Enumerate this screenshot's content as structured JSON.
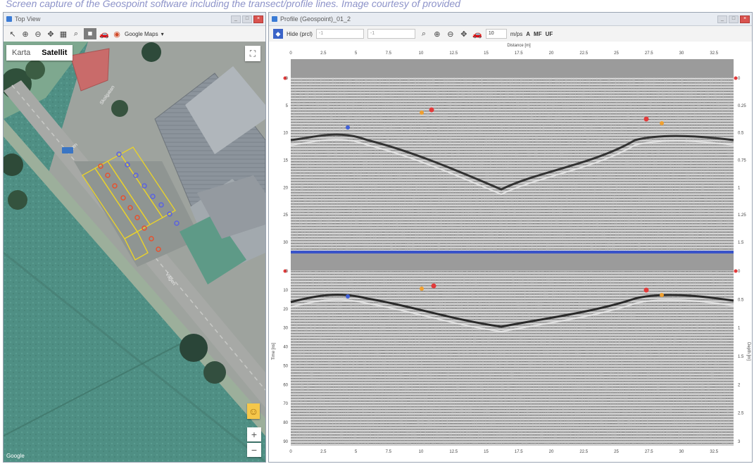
{
  "caption": "Screen capture of the Geospoint software including the transect/profile lines. Image courtesy of provided",
  "top_view": {
    "title": "Top View",
    "toolbar": {
      "map_source": "Google Maps"
    },
    "map_type": {
      "options": [
        "Karta",
        "Satellit"
      ],
      "selected": "Satellit"
    },
    "zoom_in": "+",
    "zoom_out": "−",
    "attribution": "Google"
  },
  "profile_view": {
    "title": "Profile (Geospoint)_01_2",
    "toolbar": {
      "layer": "Hide (prcl)",
      "field_a": "-1",
      "field_b": "-1",
      "value": "10",
      "unit": "m/ps",
      "btn_a": "A",
      "btn_b": "MF",
      "btn_c": "UF"
    },
    "distance_label": "Distance [m]",
    "distance_ticks": [
      "0",
      "2.5",
      "5",
      "7.5",
      "10",
      "12.5",
      "15",
      "17.5",
      "20",
      "22.5",
      "25",
      "27.5",
      "30",
      "32.5"
    ],
    "time_ticks_top": [
      "0",
      "5",
      "10",
      "15",
      "20",
      "25",
      "30"
    ],
    "depth_ticks_top": [
      "0",
      "0.25",
      "0.5",
      "0.75",
      "1",
      "1.25",
      "1.5"
    ],
    "time_ticks_bottom": [
      "0",
      "10",
      "20",
      "30",
      "40",
      "50",
      "60",
      "70",
      "80",
      "90"
    ],
    "depth_ticks_bottom": [
      "0",
      "0.5",
      "1",
      "1.5",
      "2",
      "2.5",
      "3"
    ],
    "time_axis_label": "Time [ns]",
    "depth_axis_label": "Depth [m]"
  },
  "colors": {
    "panel_separator": "#3953c9",
    "marker_red": "#e23a3a",
    "marker_orange": "#f0a030",
    "marker_blue": "#4060d8",
    "transect_yellow": "#e8d12c"
  }
}
